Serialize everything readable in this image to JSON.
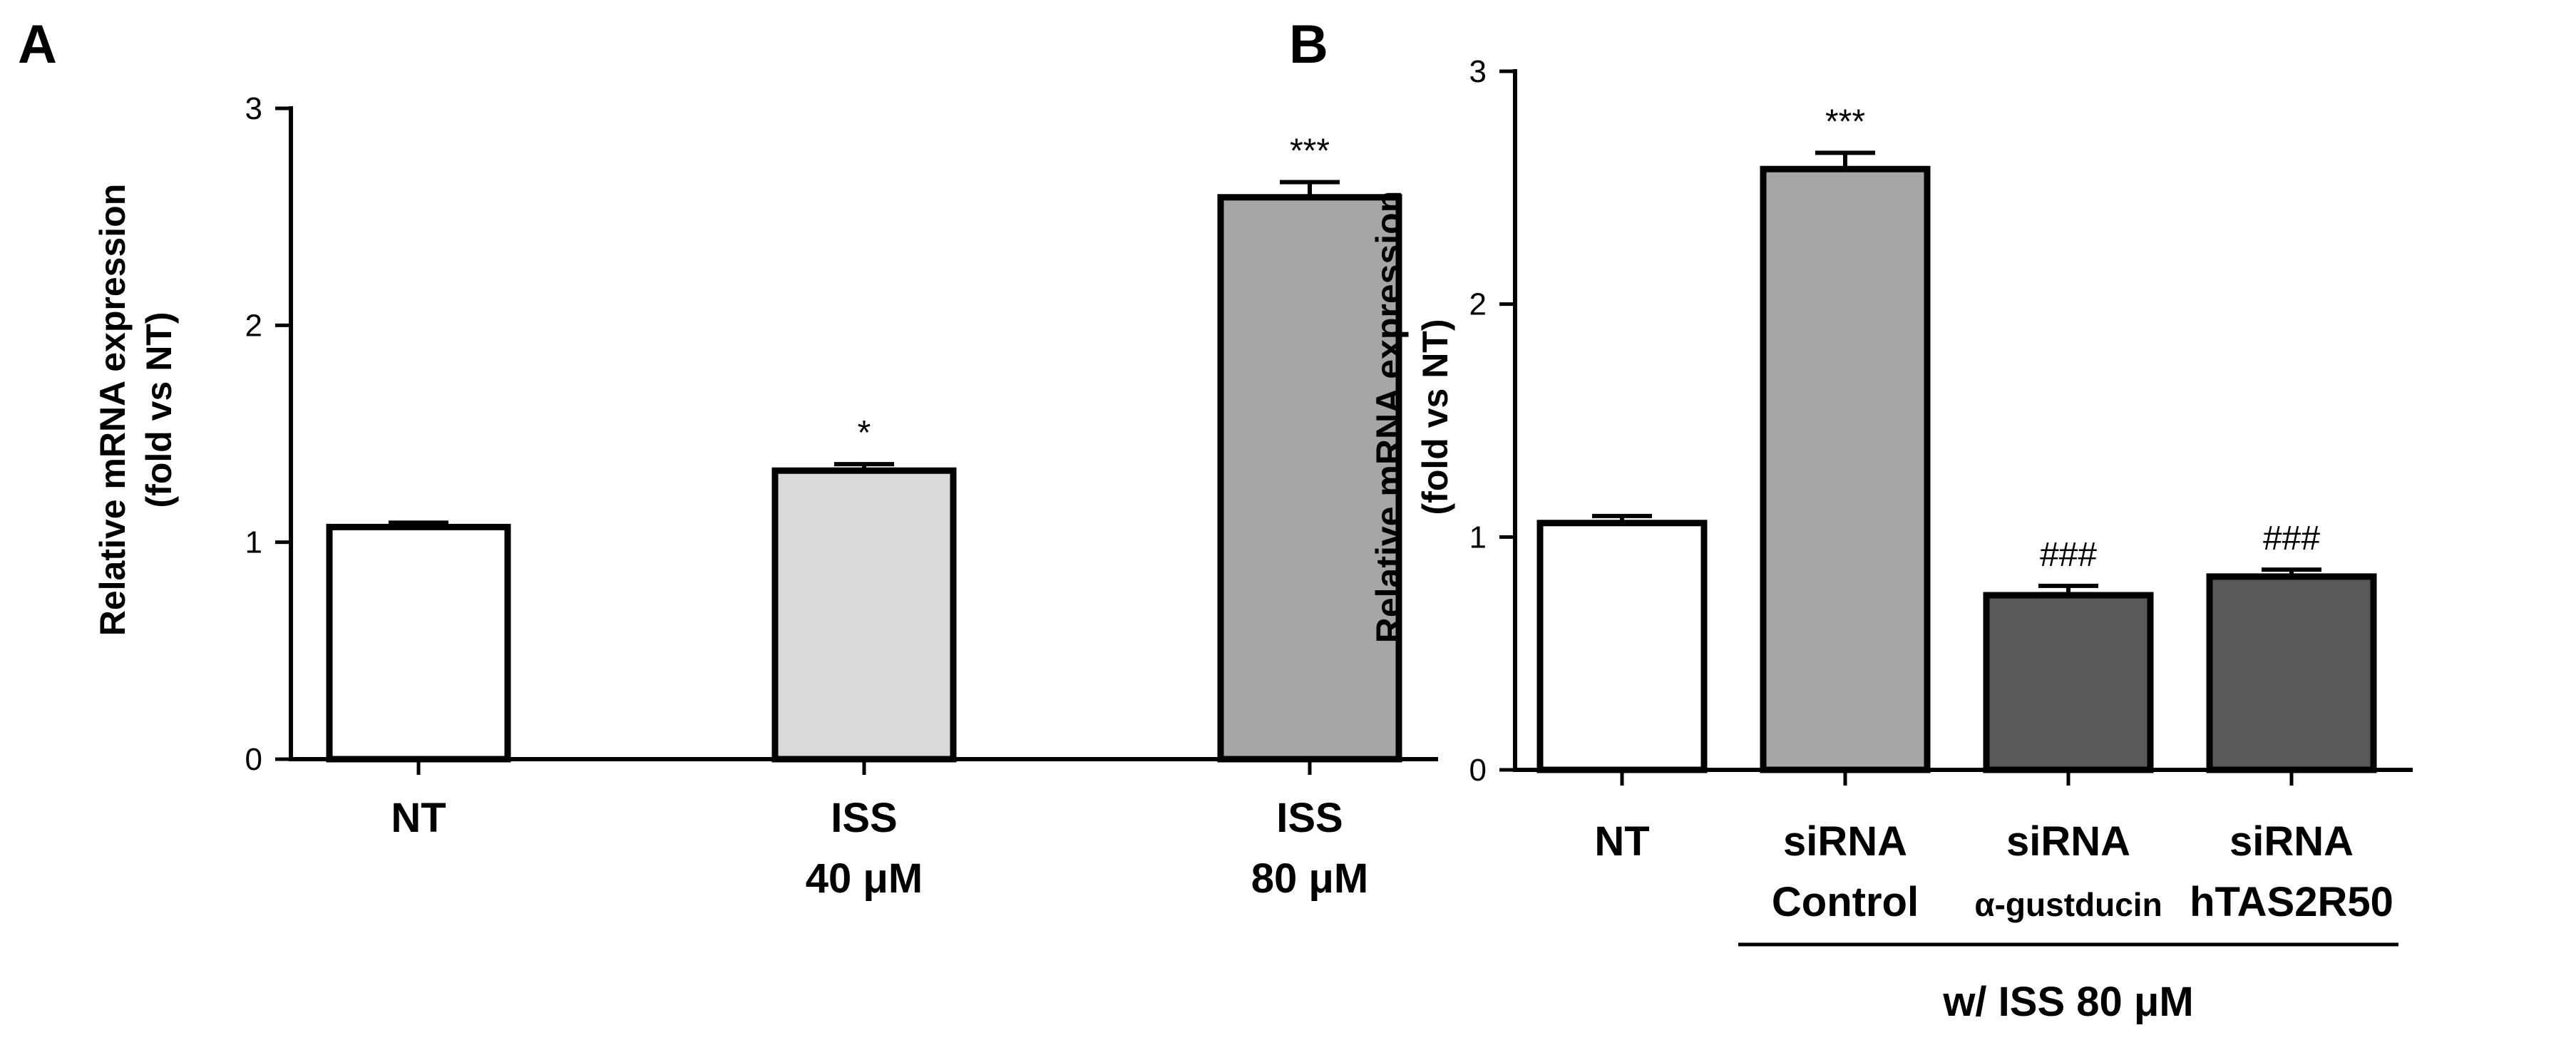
{
  "chart_data": [
    {
      "panel_label": "A",
      "type": "bar",
      "ylabel_line1": "Relative mRNA expression",
      "ylabel_line2": "(fold vs NT)",
      "ylim": [
        0,
        3
      ],
      "yticks": [
        "0",
        "1",
        "2",
        "3"
      ],
      "bars": [
        {
          "label": [
            "NT"
          ],
          "value": 1.07,
          "error": 0.02,
          "annotation": "",
          "color": "#ffffff"
        },
        {
          "label": [
            "ISS",
            "40 μM"
          ],
          "value": 1.33,
          "error": 0.03,
          "annotation": "*",
          "color": "#d9d9d9"
        },
        {
          "label": [
            "ISS",
            "80 μM"
          ],
          "value": 2.59,
          "error": 0.07,
          "annotation": "***",
          "color": "#a6a6a6"
        }
      ],
      "group_label": ""
    },
    {
      "panel_label": "B",
      "type": "bar",
      "ylabel_line1": "Relative mRNA expression",
      "ylabel_line2": "(fold vs NT)",
      "ylim": [
        0,
        3
      ],
      "yticks": [
        "0",
        "1",
        "2",
        "3"
      ],
      "bars": [
        {
          "label": [
            "NT"
          ],
          "value": 1.06,
          "error": 0.03,
          "annotation": "",
          "color": "#ffffff"
        },
        {
          "label": [
            "siRNA",
            "Control"
          ],
          "value": 2.58,
          "error": 0.07,
          "annotation": "***",
          "color": "#a6a6a6"
        },
        {
          "label": [
            "siRNA",
            "α-gustducin"
          ],
          "value": 0.75,
          "error": 0.04,
          "annotation": "###",
          "color": "#595959"
        },
        {
          "label": [
            "siRNA",
            "hTAS2R50"
          ],
          "value": 0.83,
          "error": 0.03,
          "annotation": "###",
          "color": "#595959"
        }
      ],
      "group_label": "w/ ISS 80 μM"
    }
  ]
}
